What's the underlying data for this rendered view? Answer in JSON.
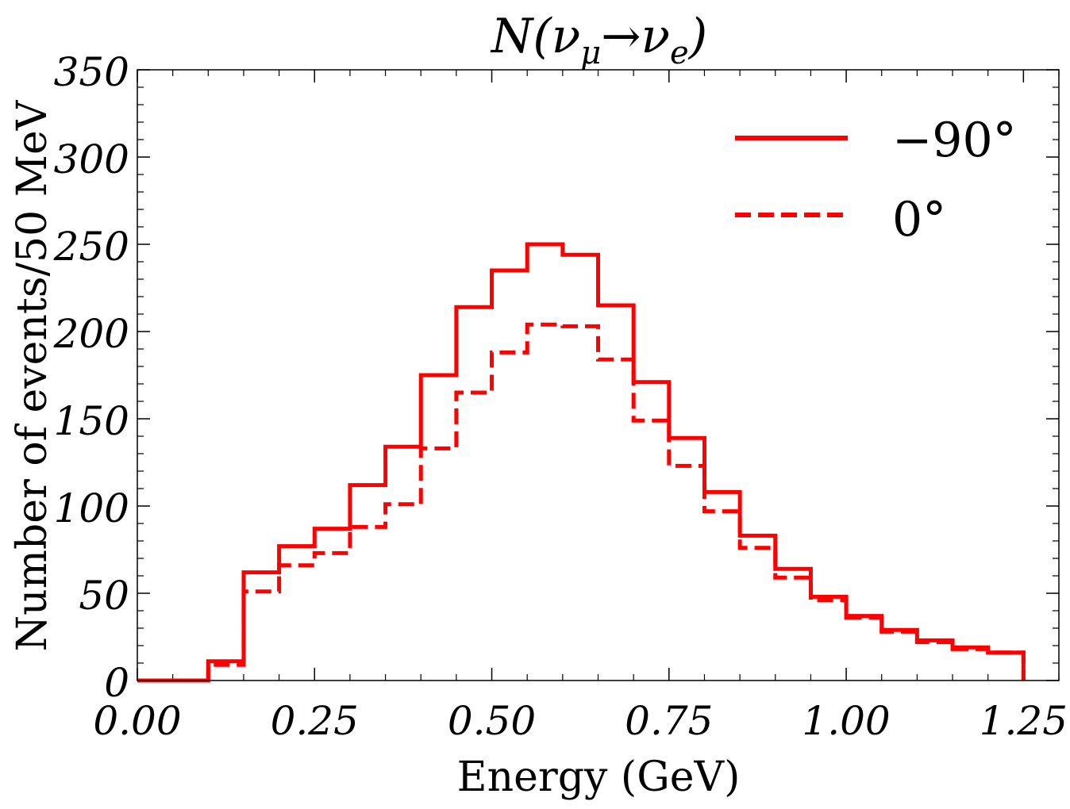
{
  "chart_data": {
    "type": "step",
    "title": "N(ν_μ→ν_e)",
    "title_parts": {
      "base": "N(ν",
      "sub1": "μ",
      "arrow": "→ν",
      "sub2": "e",
      "close": ")"
    },
    "xlabel": "Energy (GeV)",
    "ylabel": "Number of events/50 MeV",
    "xlim": [
      0.0,
      1.3
    ],
    "ylim": [
      0,
      350
    ],
    "xticks": [
      0.0,
      0.25,
      0.5,
      0.75,
      1.0,
      1.25
    ],
    "xtick_labels": [
      "0.00",
      "0.25",
      "0.50",
      "0.75",
      "1.00",
      "1.25"
    ],
    "yticks": [
      0,
      50,
      100,
      150,
      200,
      250,
      300,
      350
    ],
    "ytick_labels": [
      "0",
      "50",
      "100",
      "150",
      "200",
      "250",
      "300",
      "350"
    ],
    "bin_edges": [
      0.0,
      0.05,
      0.1,
      0.15,
      0.2,
      0.25,
      0.3,
      0.35,
      0.4,
      0.45,
      0.5,
      0.55,
      0.6,
      0.65,
      0.7,
      0.75,
      0.8,
      0.85,
      0.9,
      0.95,
      1.0,
      1.05,
      1.1,
      1.15,
      1.2,
      1.25
    ],
    "series": [
      {
        "name": "−90°",
        "style": "solid",
        "color": "#ff0000",
        "values": [
          0,
          0,
          11,
          62,
          77,
          87,
          112,
          134,
          175,
          214,
          235,
          250,
          244,
          215,
          171,
          139,
          108,
          83,
          64,
          48,
          37,
          29,
          23,
          19,
          16
        ]
      },
      {
        "name": "0°",
        "style": "dashed",
        "color": "#ff0000",
        "values": [
          0,
          0,
          9,
          51,
          66,
          73,
          88,
          101,
          133,
          165,
          188,
          204,
          203,
          184,
          149,
          123,
          97,
          76,
          59,
          46,
          36,
          28,
          22,
          18,
          16
        ]
      }
    ],
    "legend": {
      "position": "top-right",
      "entries": [
        "−90°",
        "0°"
      ]
    }
  }
}
